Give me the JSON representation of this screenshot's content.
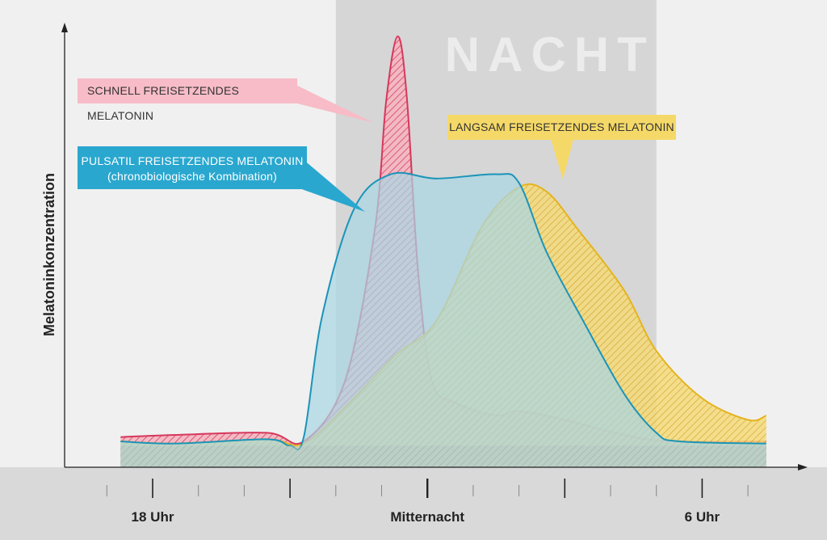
{
  "chart_data": {
    "type": "area",
    "title": "",
    "xlabel": "",
    "ylabel": "Melatoninkonzentration",
    "x_ticks": [
      {
        "x": -1,
        "label": ""
      },
      {
        "x": 0,
        "label": "18 Uhr",
        "major": true
      },
      {
        "x": 1,
        "label": ""
      },
      {
        "x": 2,
        "label": ""
      },
      {
        "x": 3,
        "label": "",
        "major": true
      },
      {
        "x": 4,
        "label": ""
      },
      {
        "x": 5,
        "label": ""
      },
      {
        "x": 6,
        "label": "Mitternacht",
        "major": true
      },
      {
        "x": 7,
        "label": ""
      },
      {
        "x": 8,
        "label": ""
      },
      {
        "x": 9,
        "label": "",
        "major": true
      },
      {
        "x": 10,
        "label": ""
      },
      {
        "x": 11,
        "label": ""
      },
      {
        "x": 12,
        "label": "6 Uhr",
        "major": true
      },
      {
        "x": 13,
        "label": ""
      }
    ],
    "xlim": [
      -1.15,
      13.6
    ],
    "ylim": [
      0,
      1
    ],
    "night_band": {
      "label": "NACHT",
      "x_start": 4.0,
      "x_end": 11.0
    },
    "series": [
      {
        "name": "SCHNELL FREISETZENDES MELATONIN",
        "color": "#d6385c",
        "fill": "#f3b7c2",
        "values": [
          [
            -0.7,
            0.07
          ],
          [
            0.5,
            0.075
          ],
          [
            2.5,
            0.08
          ],
          [
            3.3,
            0.06
          ],
          [
            4.2,
            0.2
          ],
          [
            4.85,
            0.55
          ],
          [
            5.1,
            0.85
          ],
          [
            5.35,
            1.0
          ],
          [
            5.55,
            0.86
          ],
          [
            5.8,
            0.45
          ],
          [
            6.1,
            0.2
          ],
          [
            6.6,
            0.15
          ],
          [
            7.5,
            0.12
          ],
          [
            8.0,
            0.13
          ],
          [
            9.0,
            0.11
          ],
          [
            10.5,
            0.07
          ],
          [
            11.5,
            0.06
          ],
          [
            13.4,
            0.06
          ]
        ]
      },
      {
        "name": "PULSATIL FREISETZENDES MELATONIN (chronobiologische Kombination)",
        "color": "#1b94b8",
        "fill": "#a9d6e3",
        "values": [
          [
            -0.7,
            0.06
          ],
          [
            0.5,
            0.055
          ],
          [
            2.5,
            0.065
          ],
          [
            3.0,
            0.05
          ],
          [
            3.3,
            0.07
          ],
          [
            3.7,
            0.35
          ],
          [
            4.4,
            0.6
          ],
          [
            5.2,
            0.68
          ],
          [
            6.2,
            0.67
          ],
          [
            7.5,
            0.68
          ],
          [
            8.0,
            0.66
          ],
          [
            8.6,
            0.5
          ],
          [
            9.4,
            0.34
          ],
          [
            10.3,
            0.17
          ],
          [
            11.0,
            0.08
          ],
          [
            11.5,
            0.06
          ],
          [
            13.4,
            0.055
          ]
        ]
      },
      {
        "name": "LANGSAM FREISETZENDES MELATONIN",
        "color": "#e4b41e",
        "fill": "#f5db7a",
        "values": [
          [
            -0.7,
            0.06
          ],
          [
            0.5,
            0.055
          ],
          [
            2.5,
            0.065
          ],
          [
            3.3,
            0.055
          ],
          [
            4.3,
            0.15
          ],
          [
            5.3,
            0.26
          ],
          [
            6.2,
            0.34
          ],
          [
            7.2,
            0.56
          ],
          [
            8.0,
            0.65
          ],
          [
            8.6,
            0.64
          ],
          [
            9.3,
            0.55
          ],
          [
            10.3,
            0.41
          ],
          [
            11.0,
            0.27
          ],
          [
            12.0,
            0.16
          ],
          [
            13.0,
            0.11
          ],
          [
            13.4,
            0.12
          ]
        ]
      }
    ],
    "annotations": {
      "fast": "SCHNELL FREISETZENDES MELATONIN",
      "pulsatile_line1": "PULSATIL FREISETZENDES MELATONIN",
      "pulsatile_line2": "(chronobiologische Kombination)",
      "slow": "LANGSAM FREISETZENDES MELATONIN"
    },
    "grid": false,
    "legend": "callouts"
  }
}
